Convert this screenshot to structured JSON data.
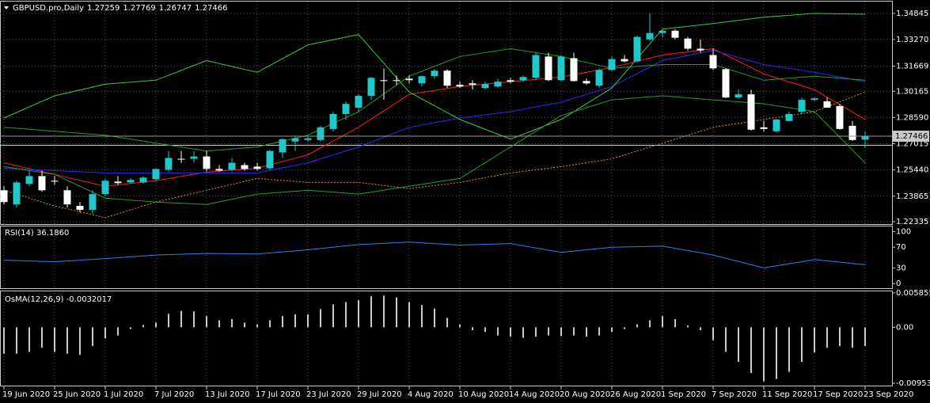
{
  "chart_data": [
    {
      "type": "candlestick",
      "title": "GBPUSD.pro,Daily",
      "x_labels": [
        "19 Jun 2020",
        "25 Jun 2020",
        "1 Jul 2020",
        "7 Jul 2020",
        "13 Jul 2020",
        "17 Jul 2020",
        "23 Jul 2020",
        "29 Jul 2020",
        "4 Aug 2020",
        "10 Aug 2020",
        "14 Aug 2020",
        "20 Aug 2020",
        "26 Aug 2020",
        "1 Sep 2020",
        "7 Sep 2020",
        "11 Sep 2020",
        "17 Sep 2020",
        "23 Sep 2020"
      ],
      "open": [
        1.2422,
        1.2337,
        1.246,
        1.2507,
        1.2479,
        1.2422,
        1.2328,
        1.2304,
        1.2399,
        1.2474,
        1.2469,
        1.2469,
        1.2488,
        1.2545,
        1.2611,
        1.2611,
        1.2625,
        1.255,
        1.2545,
        1.2573,
        1.2564,
        1.2554,
        1.2649,
        1.2715,
        1.2724,
        1.2724,
        1.279,
        1.288,
        1.2918,
        1.2989,
        1.3083,
        1.3083,
        1.3092,
        1.3064,
        1.3107,
        1.314,
        1.3055,
        1.3064,
        1.3036,
        1.3045,
        1.3083,
        1.3083,
        1.3097,
        1.3225,
        1.3083,
        1.3215,
        1.3078,
        1.305,
        1.3144,
        1.321,
        1.3196,
        1.3328,
        1.3366,
        1.338,
        1.3333,
        1.3272,
        1.3234,
        1.3149,
        1.2979,
        1.2998,
        1.28,
        1.2776,
        1.2838,
        1.2894,
        1.2965,
        1.2956,
        1.2927,
        1.2809,
        1.27259
      ],
      "high": [
        1.2446,
        1.2479,
        1.254,
        1.254,
        1.2507,
        1.2446,
        1.2351,
        1.2422,
        1.2493,
        1.2507,
        1.2493,
        1.2507,
        1.2554,
        1.2658,
        1.2658,
        1.2658,
        1.2658,
        1.2573,
        1.2616,
        1.2587,
        1.2587,
        1.2665,
        1.2734,
        1.2743,
        1.2743,
        1.2809,
        1.2894,
        1.2956,
        1.2998,
        1.3102,
        1.3154,
        1.3111,
        1.3111,
        1.3111,
        1.3149,
        1.3149,
        1.3074,
        1.3083,
        1.3074,
        1.3092,
        1.3097,
        1.3111,
        1.3248,
        1.3248,
        1.3234,
        1.3248,
        1.3092,
        1.3154,
        1.3225,
        1.3234,
        1.335,
        1.3484,
        1.339,
        1.339,
        1.3343,
        1.3328,
        1.3272,
        1.3154,
        1.3026,
        1.3026,
        1.2838,
        1.2852,
        1.2894,
        1.2979,
        1.2979,
        1.2979,
        1.2941,
        1.2838,
        1.27769
      ],
      "low": [
        1.2337,
        1.2318,
        1.2446,
        1.2413,
        1.2455,
        1.2318,
        1.229,
        1.2281,
        1.2384,
        1.2455,
        1.246,
        1.246,
        1.2479,
        1.2535,
        1.2587,
        1.2587,
        1.2535,
        1.2535,
        1.2535,
        1.254,
        1.254,
        1.2545,
        1.2616,
        1.2658,
        1.2715,
        1.2715,
        1.2776,
        1.2847,
        1.2894,
        1.2965,
        1.2965,
        1.3055,
        1.3064,
        1.3045,
        1.3092,
        1.3036,
        1.3036,
        1.3026,
        1.3026,
        1.3036,
        1.3064,
        1.3074,
        1.3083,
        1.3078,
        1.3074,
        1.3074,
        1.3055,
        1.3036,
        1.314,
        1.319,
        1.319,
        1.332,
        1.3338,
        1.3328,
        1.3262,
        1.3248,
        1.3144,
        1.2975,
        1.2974,
        1.278,
        1.2776,
        1.277,
        1.2835,
        1.288,
        1.2956,
        1.2918,
        1.2786,
        1.2718,
        1.26747
      ],
      "close": [
        1.2351,
        1.2469,
        1.2507,
        1.2422,
        1.2474,
        1.2337,
        1.2304,
        1.2399,
        1.2479,
        1.2465,
        1.2484,
        1.2498,
        1.255,
        1.2616,
        1.2606,
        1.2625,
        1.255,
        1.254,
        1.2587,
        1.255,
        1.255,
        1.2658,
        1.2729,
        1.2734,
        1.2734,
        1.28,
        1.288,
        1.2941,
        1.2989,
        1.3097,
        1.3078,
        1.3078,
        1.3083,
        1.3107,
        1.314,
        1.305,
        1.3045,
        1.3055,
        1.3059,
        1.3074,
        1.3074,
        1.3102,
        1.3234,
        1.3083,
        1.3225,
        1.3078,
        1.3064,
        1.3144,
        1.321,
        1.3196,
        1.3343,
        1.3366,
        1.338,
        1.3338,
        1.3272,
        1.3262,
        1.3154,
        1.2979,
        1.2998,
        1.2786,
        1.279,
        1.2847,
        1.288,
        1.2965,
        1.2974,
        1.2918,
        1.279,
        1.2724,
        1.27466
      ],
      "up_color": "#1ec8c8",
      "down_color": "#ffffff",
      "series": [
        {
          "color": "#ff2020",
          "values": [
            1.2587,
            1.2517,
            1.2446,
            1.2479,
            1.2531,
            1.2554,
            1.2635,
            1.28,
            1.2998,
            1.3045,
            1.3074,
            1.3102,
            1.3159,
            1.3234,
            1.3272,
            1.3121,
            1.3026,
            1.2847
          ]
        },
        {
          "color": "#2a2aff",
          "values": [
            1.2554,
            1.254,
            1.2526,
            1.2526,
            1.2526,
            1.2526,
            1.2587,
            1.2682,
            1.28,
            1.2856,
            1.2894,
            1.2951,
            1.3045,
            1.3201,
            1.3262,
            1.3177,
            1.313,
            1.3074
          ]
        },
        {
          "color": "#3ec83e",
          "values": [
            1.2856,
            1.2989,
            1.3059,
            1.3083,
            1.3201,
            1.313,
            1.3295,
            1.3357,
            1.3012,
            1.2847,
            1.2729,
            1.2847,
            1.3036,
            1.339,
            1.3423,
            1.3461,
            1.3484,
            1.3479
          ]
        },
        {
          "color": "#2e9a2e",
          "values": [
            1.28,
            1.2776,
            1.2753,
            1.2705,
            1.2658,
            1.2682,
            1.2753,
            1.2894,
            1.3107,
            1.3225,
            1.3272,
            1.3225,
            1.3154,
            1.3177,
            1.3177,
            1.3083,
            1.3107,
            1.3083
          ]
        },
        {
          "color": "#2e9a2e",
          "values": [
            1.2564,
            1.2517,
            1.2375,
            1.2351,
            1.2337,
            1.2399,
            1.2422,
            1.2399,
            1.2446,
            1.2493,
            1.2682,
            1.2871,
            1.2965,
            1.2989,
            1.2965,
            1.2941,
            1.2894,
            1.2587
          ]
        },
        {
          "color": "#d9904a",
          "dashed": true,
          "values": [
            1.2422,
            1.2328,
            1.2257,
            1.2351,
            1.2422,
            1.2493,
            1.2469,
            1.2469,
            1.2432,
            1.2469,
            1.2526,
            1.2564,
            1.2611,
            1.2705,
            1.28,
            1.2847,
            1.2894,
            1.3012
          ]
        }
      ],
      "level": {
        "value": 1.2692,
        "color": "#e6e600"
      },
      "ylim": [
        1.2219,
        1.3555
      ],
      "yticks": [
        1.34845,
        {
          "value": 1.3327,
          "label": "1.33270"
        },
        1.31669,
        1.30165,
        {
          "value": 1.2859,
          "label": "1.28590"
        },
        1.27015,
        {
          "value": 1.2544,
          "label": "1.25440"
        },
        1.23865,
        1.22335
      ],
      "grid": true
    },
    {
      "type": "line",
      "title": "RSI(14) 36.1860",
      "values": [
        45,
        42,
        48,
        55,
        58,
        57,
        65,
        75,
        80,
        74,
        77,
        60,
        70,
        72,
        55,
        30,
        46,
        36.186
      ],
      "color": "#2f7fe8",
      "ylim": [
        -9,
        110
      ],
      "yticks": [
        0,
        30,
        70,
        100
      ],
      "grid": false
    },
    {
      "type": "bar",
      "title": "OsMA(12,26,9) -0.0032017",
      "values": [
        -0.0045,
        -0.0045,
        -0.0042,
        -0.0035,
        -0.0042,
        -0.0045,
        -0.0047,
        -0.0032,
        -0.0019,
        -0.0014,
        -0.0003,
        0.0004,
        0.0008,
        0.0023,
        0.0028,
        0.0027,
        0.0019,
        0.0012,
        0.0014,
        0.0008,
        0.0005,
        0.0012,
        0.0019,
        0.0022,
        0.0022,
        0.0031,
        0.0039,
        0.0043,
        0.0046,
        0.0053,
        0.0054,
        0.0051,
        0.0043,
        0.0038,
        0.0032,
        0.0016,
        0.0005,
        -0.0005,
        -0.0008,
        -0.0014,
        -0.0016,
        -0.0018,
        -0.0016,
        -0.0014,
        -0.0015,
        -0.0014,
        -0.0016,
        -0.0014,
        -0.0008,
        -0.0003,
        0.0005,
        0.0012,
        0.0019,
        0.0014,
        0.0003,
        -0.0005,
        -0.0022,
        -0.0042,
        -0.0059,
        -0.0078,
        -0.0092,
        -0.0088,
        -0.0076,
        -0.0059,
        -0.0043,
        -0.0035,
        -0.0032,
        -0.0035,
        -0.0032017
      ],
      "color": "#c8c8c8",
      "ylim": [
        -0.009535,
        0.0058555
      ],
      "yticks": [
        0.0058555,
        {
          "value": 0,
          "label": "0.00"
        },
        -0.009535
      ],
      "grid": false
    }
  ]
}
